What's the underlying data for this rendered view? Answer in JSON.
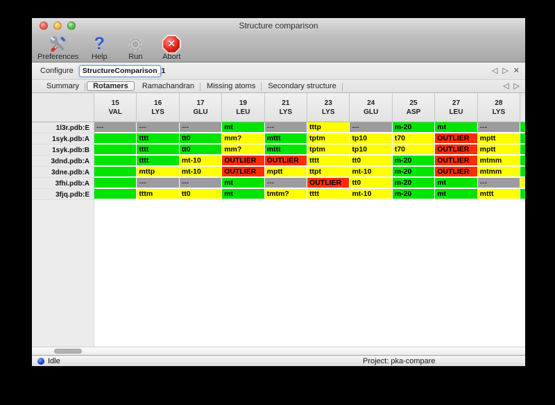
{
  "window": {
    "title": "Structure comparison"
  },
  "toolbar": {
    "buttons": [
      {
        "label": "Preferences",
        "icon": "preferences-tools-icon"
      },
      {
        "label": "Help",
        "icon": "help-question-icon"
      },
      {
        "label": "Run",
        "icon": "run-gear-icon"
      },
      {
        "label": "Abort",
        "icon": "abort-stop-icon"
      }
    ]
  },
  "configure": {
    "label": "Configure",
    "field_value": "StructureComparison_1",
    "nav_prev": "◁",
    "nav_next": "▷",
    "nav_close": "✕"
  },
  "tabbar": {
    "tabs": [
      {
        "label": "Summary",
        "active": false
      },
      {
        "label": "Rotamers",
        "active": true
      },
      {
        "label": "Ramachandran",
        "active": false
      },
      {
        "label": "Missing atoms",
        "active": false
      },
      {
        "label": "Secondary structure",
        "active": false
      }
    ],
    "nav_prev": "◁",
    "nav_next": "▷"
  },
  "rotamer_table": {
    "status_colors": {
      "green": "#00e400",
      "yellow": "#ffff00",
      "red": "#ff2d00",
      "gray": "#9c9c9c"
    },
    "columns": [
      {
        "num": "15",
        "res": "VAL"
      },
      {
        "num": "16",
        "res": "LYS"
      },
      {
        "num": "17",
        "res": "GLU"
      },
      {
        "num": "19",
        "res": "LEU"
      },
      {
        "num": "21",
        "res": "LYS"
      },
      {
        "num": "23",
        "res": "LYS"
      },
      {
        "num": "24",
        "res": "GLU"
      },
      {
        "num": "25",
        "res": "ASP"
      },
      {
        "num": "27",
        "res": "LEU"
      },
      {
        "num": "28",
        "res": "LYS"
      }
    ],
    "rows": [
      {
        "label": "1l3r.pdb:E",
        "edge": "green",
        "cells": [
          {
            "text": "---",
            "status": "gray"
          },
          {
            "text": "---",
            "status": "gray"
          },
          {
            "text": "---",
            "status": "gray"
          },
          {
            "text": "mt",
            "status": "green"
          },
          {
            "text": "---",
            "status": "gray"
          },
          {
            "text": "tttp",
            "status": "yellow"
          },
          {
            "text": "---",
            "status": "gray"
          },
          {
            "text": "m-20",
            "status": "green"
          },
          {
            "text": "mt",
            "status": "green"
          },
          {
            "text": "---",
            "status": "gray"
          }
        ]
      },
      {
        "label": "1syk.pdb:A",
        "edge": "green",
        "cells": [
          {
            "text": "",
            "status": "green"
          },
          {
            "text": "tttt",
            "status": "green"
          },
          {
            "text": "tt0",
            "status": "green"
          },
          {
            "text": "mm?",
            "status": "yellow"
          },
          {
            "text": "mttt",
            "status": "green"
          },
          {
            "text": "tptm",
            "status": "yellow"
          },
          {
            "text": "tp10",
            "status": "yellow"
          },
          {
            "text": "t70",
            "status": "yellow"
          },
          {
            "text": "OUTLIER",
            "status": "red"
          },
          {
            "text": "mptt",
            "status": "yellow"
          }
        ]
      },
      {
        "label": "1syk.pdb:B",
        "edge": "green",
        "cells": [
          {
            "text": "",
            "status": "green"
          },
          {
            "text": "tttt",
            "status": "green"
          },
          {
            "text": "tt0",
            "status": "green"
          },
          {
            "text": "mm?",
            "status": "yellow"
          },
          {
            "text": "mttt",
            "status": "green"
          },
          {
            "text": "tptm",
            "status": "yellow"
          },
          {
            "text": "tp10",
            "status": "yellow"
          },
          {
            "text": "t70",
            "status": "yellow"
          },
          {
            "text": "OUTLIER",
            "status": "red"
          },
          {
            "text": "mptt",
            "status": "yellow"
          }
        ]
      },
      {
        "label": "3dnd.pdb:A",
        "edge": "green",
        "cells": [
          {
            "text": "",
            "status": "green"
          },
          {
            "text": "tttt",
            "status": "green"
          },
          {
            "text": "mt-10",
            "status": "yellow"
          },
          {
            "text": "OUTLIER",
            "status": "red"
          },
          {
            "text": "OUTLIER",
            "status": "red"
          },
          {
            "text": "tttt",
            "status": "yellow"
          },
          {
            "text": "tt0",
            "status": "yellow"
          },
          {
            "text": "m-20",
            "status": "green"
          },
          {
            "text": "OUTLIER",
            "status": "red"
          },
          {
            "text": "mtmm",
            "status": "yellow"
          }
        ]
      },
      {
        "label": "3dne.pdb:A",
        "edge": "green",
        "cells": [
          {
            "text": "",
            "status": "green"
          },
          {
            "text": "mttp",
            "status": "yellow"
          },
          {
            "text": "mt-10",
            "status": "yellow"
          },
          {
            "text": "OUTLIER",
            "status": "red"
          },
          {
            "text": "mptt",
            "status": "yellow"
          },
          {
            "text": "ttpt",
            "status": "yellow"
          },
          {
            "text": "mt-10",
            "status": "yellow"
          },
          {
            "text": "m-20",
            "status": "green"
          },
          {
            "text": "OUTLIER",
            "status": "red"
          },
          {
            "text": "mtmm",
            "status": "yellow"
          }
        ]
      },
      {
        "label": "3fhi.pdb:A",
        "edge": "yellow",
        "cells": [
          {
            "text": "",
            "status": "green"
          },
          {
            "text": "---",
            "status": "gray"
          },
          {
            "text": "---",
            "status": "gray"
          },
          {
            "text": "mt",
            "status": "green"
          },
          {
            "text": "---",
            "status": "gray"
          },
          {
            "text": "OUTLIER",
            "status": "red"
          },
          {
            "text": "tt0",
            "status": "yellow"
          },
          {
            "text": "m-20",
            "status": "green"
          },
          {
            "text": "mt",
            "status": "green"
          },
          {
            "text": "---",
            "status": "gray"
          }
        ]
      },
      {
        "label": "3fjq.pdb:E",
        "edge": "green",
        "cells": [
          {
            "text": "",
            "status": "green"
          },
          {
            "text": "tttm",
            "status": "yellow"
          },
          {
            "text": "tt0",
            "status": "yellow"
          },
          {
            "text": "mt",
            "status": "green"
          },
          {
            "text": "tmtm?",
            "status": "yellow"
          },
          {
            "text": "tttt",
            "status": "yellow"
          },
          {
            "text": "mt-10",
            "status": "yellow"
          },
          {
            "text": "m-20",
            "status": "green"
          },
          {
            "text": "mt",
            "status": "green"
          },
          {
            "text": "mttt",
            "status": "yellow"
          }
        ]
      }
    ]
  },
  "statusbar": {
    "state": "Idle",
    "project": "Project: pka-compare"
  }
}
